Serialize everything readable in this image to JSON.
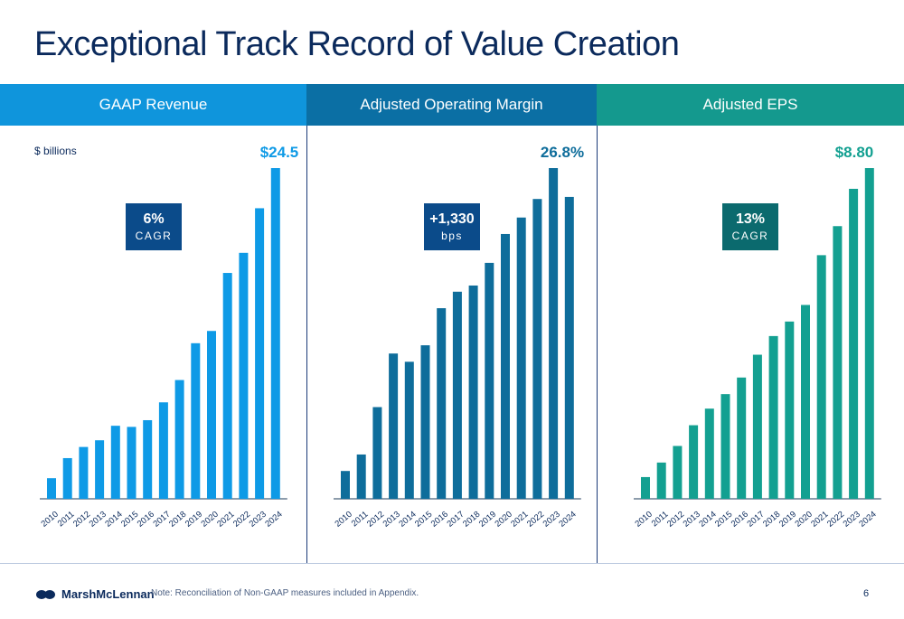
{
  "title": "Exceptional Track Record of Value Creation",
  "colors": {
    "revenue_header": "#0f95dc",
    "margin_header": "#0b6fa4",
    "eps_header": "#14998e",
    "revenue_bar": "#0e9ae6",
    "margin_bar": "#0e6d9b",
    "eps_bar": "#13a091",
    "title": "#0b2a5c"
  },
  "unit_label": "$ billions",
  "footer": {
    "company": "MarshMcLennan",
    "note": "Note: Reconciliation of Non-GAAP measures included in Appendix.",
    "page_number": "6"
  },
  "chart_data": [
    {
      "type": "bar",
      "title": "GAAP Revenue",
      "categories": [
        "2010",
        "2011",
        "2012",
        "2013",
        "2014",
        "2015",
        "2016",
        "2017",
        "2018",
        "2019",
        "2020",
        "2021",
        "2022",
        "2023",
        "2024"
      ],
      "values": [
        10.6,
        11.5,
        12.0,
        12.3,
        12.95,
        12.9,
        13.2,
        14.0,
        15.0,
        16.65,
        17.2,
        19.8,
        20.7,
        22.7,
        24.5
      ],
      "ylim": [
        10.0,
        24.5
      ],
      "end_label": "$24.5",
      "badge": {
        "value": "6%",
        "label": "CAGR",
        "color": "#0b4b8a"
      }
    },
    {
      "type": "bar",
      "title": "Adjusted Operating Margin",
      "categories": [
        "2010",
        "2011",
        "2012",
        "2013",
        "2014",
        "2015",
        "2016",
        "2017",
        "2018",
        "2019",
        "2020",
        "2021",
        "2022",
        "2023",
        "2024"
      ],
      "values": [
        13.5,
        14.3,
        16.6,
        19.2,
        18.8,
        19.6,
        21.4,
        22.2,
        22.5,
        23.6,
        25.0,
        25.8,
        26.7,
        28.2,
        26.8
      ],
      "ylim": [
        12.5,
        28.2
      ],
      "end_label": "26.8%",
      "badge": {
        "value": "+1,330",
        "label": "bps",
        "color": "#0b4b8a"
      }
    },
    {
      "type": "bar",
      "title": "Adjusted EPS",
      "categories": [
        "2010",
        "2011",
        "2012",
        "2013",
        "2014",
        "2015",
        "2016",
        "2017",
        "2018",
        "2019",
        "2020",
        "2021",
        "2022",
        "2023",
        "2024"
      ],
      "values": [
        1.35,
        1.7,
        2.1,
        2.6,
        3.0,
        3.35,
        3.75,
        4.3,
        4.75,
        5.1,
        5.5,
        6.7,
        7.4,
        8.3,
        8.8
      ],
      "ylim": [
        1.0,
        8.8
      ],
      "end_label": "$8.80",
      "badge": {
        "value": "13%",
        "label": "CAGR",
        "color": "#0b6a6e"
      }
    }
  ]
}
